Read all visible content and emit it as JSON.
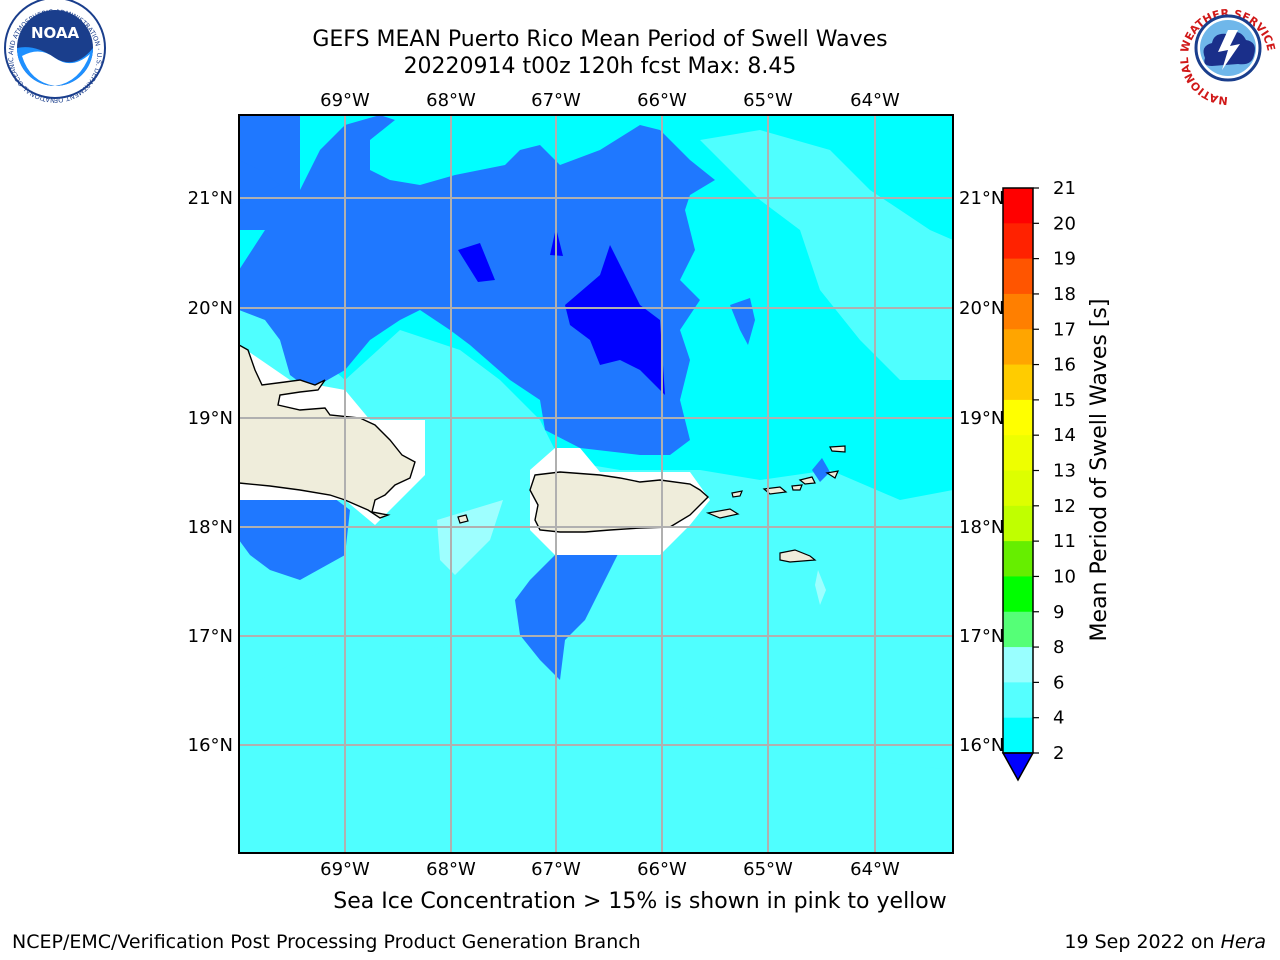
{
  "title": {
    "line1": "GEFS MEAN Puerto Rico Mean Period of Swell Waves",
    "line2": "20220914 t00z 120h fcst   Max: 8.45"
  },
  "map": {
    "lon_ticks": [
      "69°W",
      "68°W",
      "67°W",
      "66°W",
      "65°W",
      "64°W"
    ],
    "lat_ticks": [
      "21°N",
      "20°N",
      "19°N",
      "18°N",
      "17°N",
      "16°N"
    ],
    "land_color": "#efeddb",
    "ocean_colors": {
      "2_4": "#0000ff",
      "4_6": "#1f78ff",
      "6_8": "#00ffff",
      "8_9": "#4fffff",
      "9_10": "#9effff"
    }
  },
  "colorbar": {
    "label": "Mean Period of Swell Waves [s]",
    "ticks": [
      "21",
      "20",
      "19",
      "18",
      "17",
      "16",
      "15",
      "14",
      "13",
      "12",
      "11",
      "10",
      "9",
      "8",
      "6",
      "4",
      "2"
    ],
    "colors": [
      "#ff0000",
      "#ff2200",
      "#ff5500",
      "#ff7f00",
      "#ffa500",
      "#ffcc00",
      "#ffff00",
      "#eeff00",
      "#ddff00",
      "#c0ff00",
      "#66ee00",
      "#00ff00",
      "#55ff77",
      "#99ffff",
      "#55ffff",
      "#00ffff",
      "#1f78ff",
      "#0000ff"
    ]
  },
  "caption": "Sea Ice Concentration > 15% is shown in pink to yellow",
  "footer": {
    "left": "NCEP/EMC/Verification Post Processing Product Generation Branch",
    "right_date": "19 Sep 2022 on ",
    "right_host": "Hera"
  },
  "logos": {
    "noaa_text": "NOAA",
    "noaa_ring_text": "NATIONAL OCEANIC AND ATMOSPHERIC ADMINISTRATION · U.S. DEPARTMENT OF COMMERCE",
    "nws_ring_text": "NATIONAL WEATHER SERVICE"
  }
}
